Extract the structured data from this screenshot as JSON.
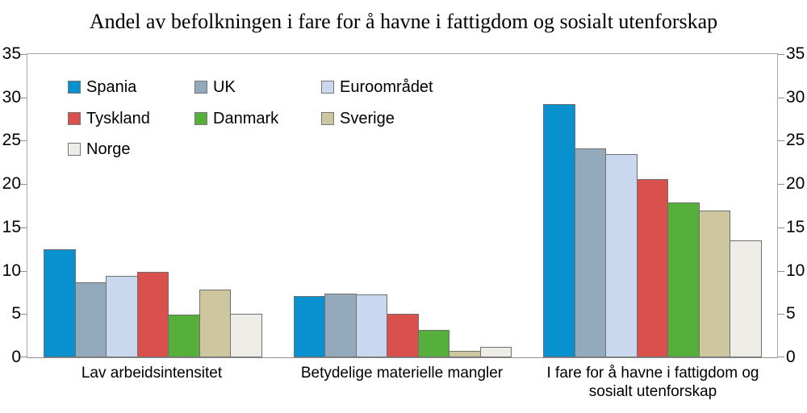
{
  "chart_data": {
    "type": "bar",
    "title": "Andel av befolkningen i fare for å havne i fattigdom og sosialt utenforskap",
    "categories": [
      "Lav arbeidsintensitet",
      "Betydelige materielle mangler",
      "I fare for å havne i fattigdom og sosialt utenforskap"
    ],
    "series": [
      {
        "name": "Spania",
        "color": "#0990CF",
        "values": [
          12.5,
          7.1,
          29.2
        ]
      },
      {
        "name": "UK",
        "color": "#93AABD",
        "values": [
          8.7,
          7.4,
          24.1
        ]
      },
      {
        "name": "Euroområdet",
        "color": "#C9D8EE",
        "values": [
          9.4,
          7.3,
          23.5
        ]
      },
      {
        "name": "Tyskland",
        "color": "#D9504D",
        "values": [
          9.9,
          5.0,
          20.6
        ]
      },
      {
        "name": "Danmark",
        "color": "#56AF3B",
        "values": [
          4.9,
          3.2,
          17.9
        ]
      },
      {
        "name": "Sverige",
        "color": "#CDC69E",
        "values": [
          7.8,
          0.7,
          16.9
        ]
      },
      {
        "name": "Norge",
        "color": "#EEECE6",
        "values": [
          5.0,
          1.2,
          13.5
        ]
      }
    ],
    "ylim": [
      0,
      35
    ],
    "yticks": [
      0,
      5,
      10,
      15,
      20,
      25,
      30,
      35
    ],
    "grid": false,
    "axis_sides": [
      "left",
      "right"
    ],
    "legend_position": "top-left-inside"
  }
}
